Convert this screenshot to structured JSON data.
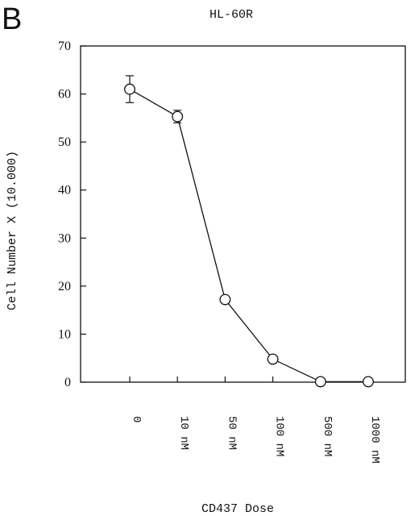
{
  "panel_label": "B",
  "chart_data": {
    "type": "line",
    "title": "HL-60R",
    "xlabel": "CD437 Dose",
    "ylabel": "Cell Number X (10.000)",
    "categories": [
      "0",
      "10 nM",
      "50 nM",
      "100 nM",
      "500 nM",
      "1000 nM"
    ],
    "series": [
      {
        "values": [
          61,
          55.3,
          17.2,
          4.8,
          0.1,
          0.1
        ],
        "error": [
          2.8,
          1.3,
          0,
          0,
          0,
          0
        ],
        "marker": "open-circle"
      }
    ],
    "ylim": [
      0,
      70
    ],
    "yticks": [
      0,
      10,
      20,
      30,
      40,
      50,
      60,
      70
    ],
    "grid": false,
    "legend": "none"
  }
}
